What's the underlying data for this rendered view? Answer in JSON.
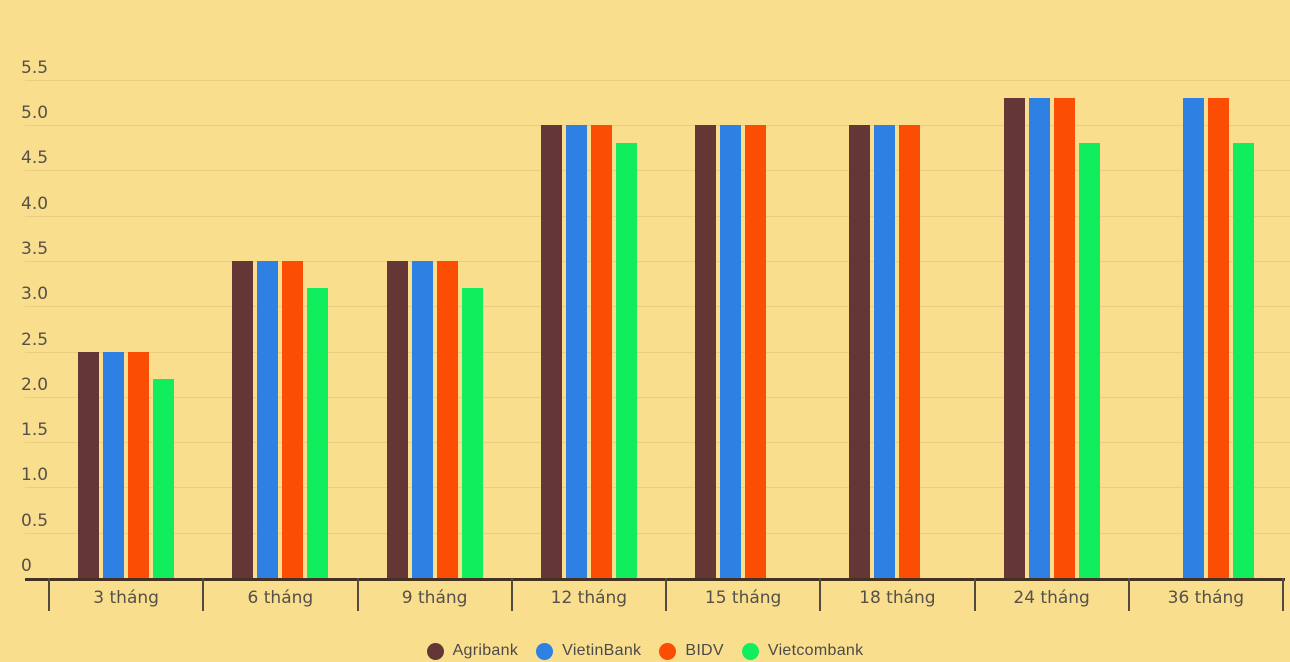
{
  "chart_data": {
    "type": "bar",
    "categories": [
      "3 tháng",
      "6 tháng",
      "9 tháng",
      "12 tháng",
      "15 tháng",
      "18 tháng",
      "24 tháng",
      "36 tháng"
    ],
    "series": [
      {
        "name": "Agribank",
        "color": "#653636",
        "values": [
          2.5,
          3.5,
          3.5,
          5.0,
          5.0,
          5.0,
          5.3,
          null
        ]
      },
      {
        "name": "VietinBank",
        "color": "#2E80E2",
        "values": [
          2.5,
          3.5,
          3.5,
          5.0,
          5.0,
          5.0,
          5.3,
          5.3
        ]
      },
      {
        "name": "BIDV",
        "color": "#FB4D04",
        "values": [
          2.5,
          3.5,
          3.5,
          5.0,
          5.0,
          5.0,
          5.3,
          5.3
        ]
      },
      {
        "name": "Vietcombank",
        "color": "#10EE5E",
        "values": [
          2.2,
          3.2,
          3.2,
          4.8,
          null,
          null,
          4.8,
          4.8
        ]
      }
    ],
    "y_ticks": [
      0,
      0.5,
      1.0,
      1.5,
      2.0,
      2.5,
      3.0,
      3.5,
      4.0,
      4.5,
      5.0,
      5.5
    ],
    "y_tick_labels": [
      "0",
      "0.5",
      "1.0",
      "1.5",
      "2.0",
      "2.5",
      "3.0",
      "3.5",
      "4.0",
      "4.5",
      "5.0",
      "5.5"
    ],
    "ylim": [
      0,
      5.5
    ],
    "grid": true,
    "legend_position": "bottom",
    "title": "",
    "xlabel": "",
    "ylabel": ""
  },
  "colors": {
    "background": "#F9DE8D",
    "gridline": "#E8CD83",
    "axis_line": "#453121",
    "tick_mark": "#534B40",
    "axis_text": "#55504A",
    "legend_text": "#4C4B48"
  }
}
